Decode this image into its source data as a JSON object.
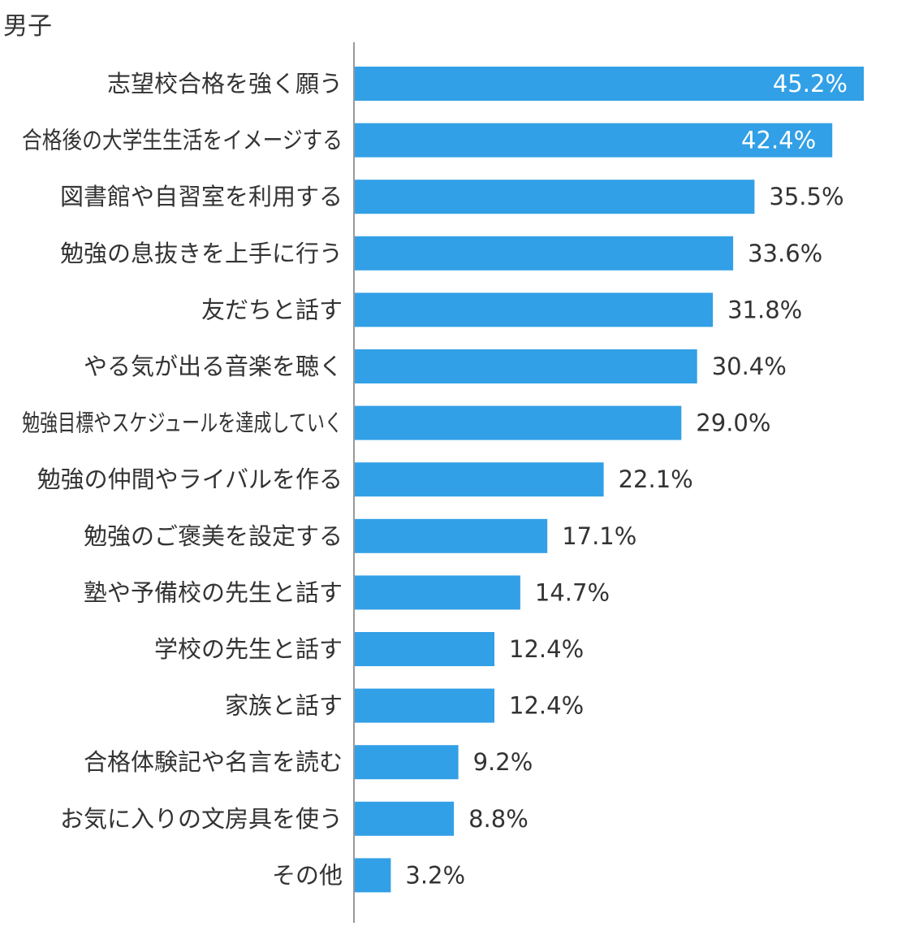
{
  "chart_data": {
    "type": "bar",
    "orientation": "horizontal",
    "title": "男子",
    "categories": [
      "志望校合格を強く願う",
      "合格後の大学生生活をイメージする",
      "図書館や自習室を利用する",
      "勉強の息抜きを上手に行う",
      "友だちと話す",
      "やる気が出る音楽を聴く",
      "勉強目標やスケジュールを達成していく",
      "勉強の仲間やライバルを作る",
      "勉強のご褒美を設定する",
      "塾や予備校の先生と話す",
      "学校の先生と話す",
      "家族と話す",
      "合格体験記や名言を読む",
      "お気に入りの文房具を使う",
      "その他"
    ],
    "values": [
      45.2,
      42.4,
      35.5,
      33.6,
      31.8,
      30.4,
      29.0,
      22.1,
      17.1,
      14.7,
      12.4,
      12.4,
      9.2,
      8.8,
      3.2
    ],
    "value_labels": [
      "45.2%",
      "42.4%",
      "35.5%",
      "33.6%",
      "31.8%",
      "30.4%",
      "29.0%",
      "22.1%",
      "17.1%",
      "14.7%",
      "12.4%",
      "12.4%",
      "9.2%",
      "8.8%",
      "3.2%"
    ],
    "xlim": [
      0,
      45.2
    ],
    "grid": false,
    "legend": "none",
    "bar_color": "#32a0e6",
    "axis_color": "#999999",
    "label_color": "#333333",
    "inside_label_color": "#ffffff"
  }
}
